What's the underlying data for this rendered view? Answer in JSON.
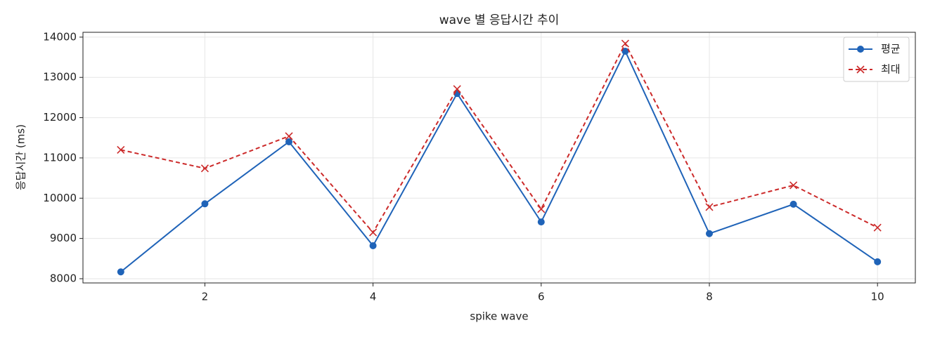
{
  "chart_data": {
    "type": "line",
    "title": "wave 별 응답시간 추이",
    "xlabel": "spike wave",
    "ylabel": "응답시간 (ms)",
    "x": [
      1,
      2,
      3,
      4,
      5,
      6,
      7,
      8,
      9,
      10
    ],
    "series": [
      {
        "name": "평균",
        "color": "#1f63b8",
        "marker": "o",
        "linestyle": "solid",
        "values": [
          8170,
          9860,
          11400,
          8820,
          12600,
          9410,
          13650,
          9120,
          9850,
          8420
        ]
      },
      {
        "name": "최대",
        "color": "#cc2a2a",
        "marker": "x",
        "linestyle": "dashed",
        "values": [
          11200,
          10740,
          11540,
          9150,
          12710,
          9730,
          13840,
          9780,
          10320,
          9270
        ]
      }
    ],
    "xlim": [
      0.55,
      10.45
    ],
    "ylim": [
      7895,
      14120
    ],
    "xticks": [
      2,
      4,
      6,
      8,
      10
    ],
    "yticks": [
      8000,
      9000,
      10000,
      11000,
      12000,
      13000,
      14000
    ],
    "grid": true,
    "legend": "upper right"
  }
}
